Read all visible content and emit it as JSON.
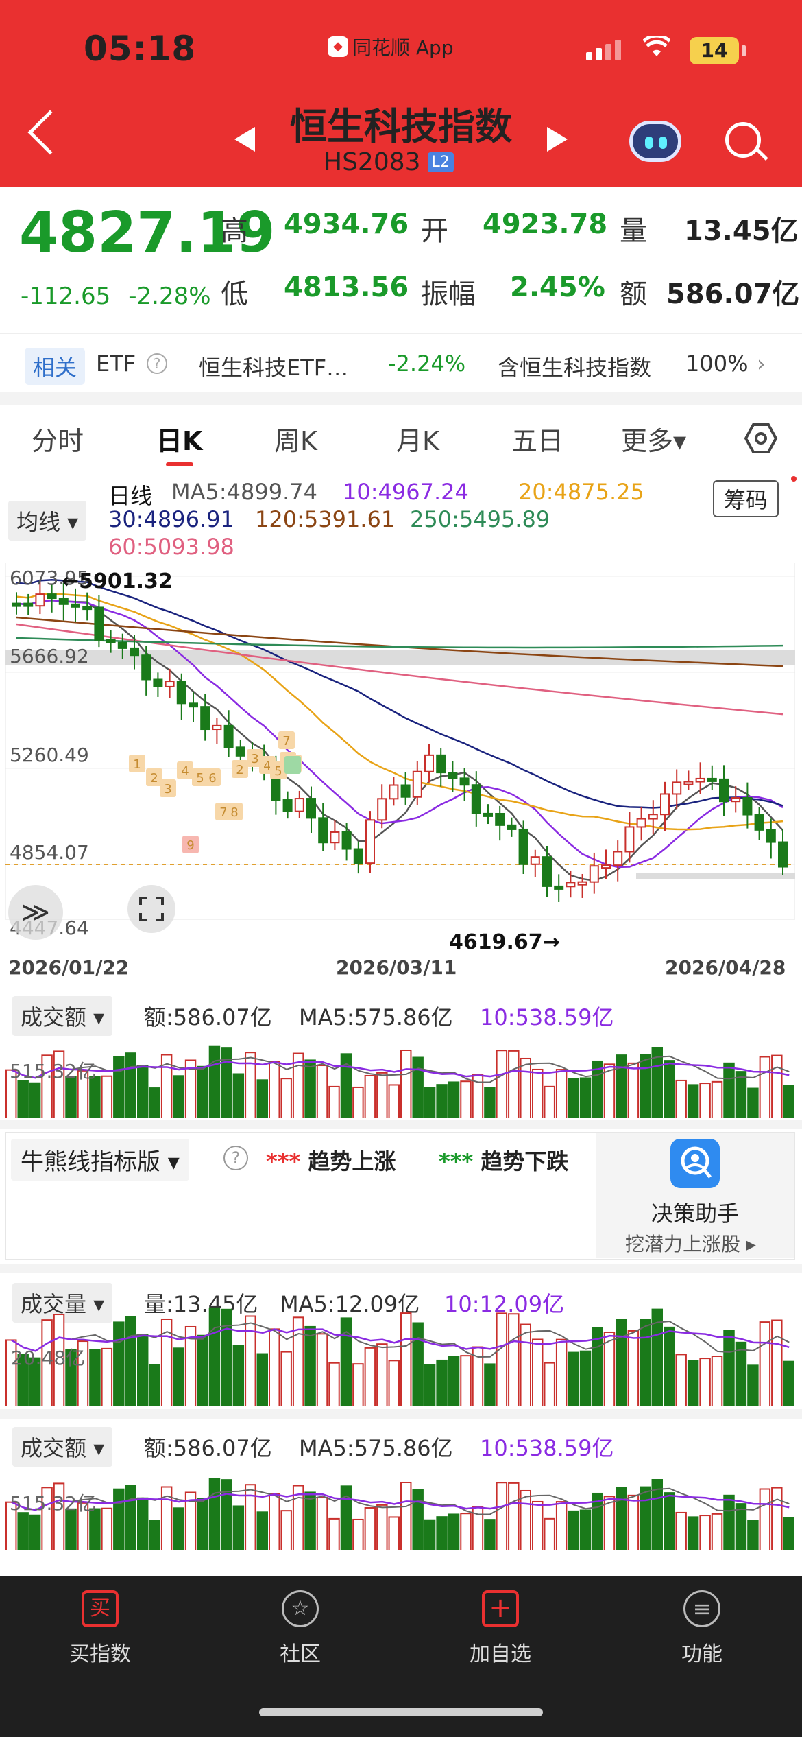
{
  "status_bar": {
    "time": "05:18",
    "app": "同花顺 App",
    "battery": "14"
  },
  "header": {
    "title": "恒生科技指数",
    "code": "HS2083",
    "level": "L2"
  },
  "quote": {
    "price": "4827.19",
    "change": "-112.65",
    "change_pct": "-2.28%",
    "high_label": "高",
    "high": "4934.76",
    "open_label": "开",
    "open": "4923.78",
    "vol_label": "量",
    "vol": "13.45亿",
    "low_label": "低",
    "low": "4813.56",
    "amp_label": "振幅",
    "amp": "2.45%",
    "amt_label": "额",
    "amt": "586.07亿"
  },
  "related": {
    "tag": "相关",
    "etf": "ETF",
    "help": "?",
    "name": "恒生科技ETF…",
    "change": "-2.24%",
    "contains": "含恒生科技指数",
    "pct": "100%",
    "chev": "›"
  },
  "tabs": [
    {
      "label": "分时"
    },
    {
      "label": "日K"
    },
    {
      "label": "周K"
    },
    {
      "label": "月K"
    },
    {
      "label": "五日"
    },
    {
      "label": "更多▾"
    }
  ],
  "ma": {
    "dropdown": "均线 ▾",
    "period": "日线",
    "ma5": "MA5:4899.74",
    "ma10": "10:4967.24",
    "ma20": "20:4875.25",
    "ma30": "30:4896.91",
    "ma120": "120:5391.61",
    "ma250": "250:5495.89",
    "ma60": "60:5093.98",
    "chips": "筹码"
  },
  "kline": {
    "y_labels": [
      "6073.95",
      "5666.92",
      "5260.49",
      "4854.07",
      "4447.64"
    ],
    "dates": [
      "2026/01/22",
      "2026/03/11",
      "2026/04/28"
    ],
    "high_note": "←5901.32",
    "low_note": "4619.67→",
    "expand": "≫"
  },
  "amount_panel": {
    "dropdown": "成交额 ▾",
    "amount": "额:586.07亿",
    "ma5": "MA5:575.86亿",
    "ma10": "10:538.59亿",
    "ylabel": "515.32亿"
  },
  "bull_bear": {
    "dropdown": "牛熊线指标版 ▾",
    "help": "?",
    "up": "趋势上涨",
    "down": "趋势下跌",
    "up_dots": "***",
    "down_dots": "***",
    "assist_title": "决策助手",
    "assist_sub": "挖潜力上涨股 ▸"
  },
  "volume_panel": {
    "dropdown": "成交量 ▾",
    "vol": "量:13.45亿",
    "ma5": "MA5:12.09亿",
    "ma10": "10:12.09亿",
    "ylabel": "20.48亿"
  },
  "amount_panel2": {
    "dropdown": "成交额 ▾",
    "amount": "额:586.07亿",
    "ma5": "MA5:575.86亿",
    "ma10": "10:538.59亿",
    "ylabel": "515.32亿"
  },
  "nav": [
    {
      "label": "买指数",
      "icon": "买"
    },
    {
      "label": "社区",
      "icon": "☆"
    },
    {
      "label": "加自选",
      "icon": "+"
    },
    {
      "label": "功能",
      "icon": "≡"
    }
  ],
  "colors": {
    "header": "#e93030",
    "up": "#c9302c",
    "down": "#1a7a1a",
    "ma5": "#555555",
    "ma10": "#8a2be2",
    "ma20": "#e8a317",
    "ma30": "#1a237e",
    "ma60": "#e06080",
    "ma120": "#8b4513",
    "ma250": "#2e8b57"
  }
}
